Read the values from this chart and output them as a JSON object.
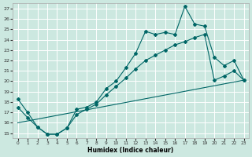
{
  "xlabel": "Humidex (Indice chaleur)",
  "bg_color": "#cce8e0",
  "line_color": "#006666",
  "xlim": [
    -0.5,
    23.5
  ],
  "ylim": [
    14.5,
    27.5
  ],
  "xticks": [
    0,
    1,
    2,
    3,
    4,
    5,
    6,
    7,
    8,
    9,
    10,
    11,
    12,
    13,
    14,
    15,
    16,
    17,
    18,
    19,
    20,
    21,
    22,
    23
  ],
  "yticks": [
    15,
    16,
    17,
    18,
    19,
    20,
    21,
    22,
    23,
    24,
    25,
    26,
    27
  ],
  "line1_x": [
    0,
    1,
    2,
    3,
    4,
    5,
    6,
    7,
    8,
    9,
    10,
    11,
    12,
    13,
    14,
    15,
    16,
    17,
    18,
    19,
    20,
    21,
    22,
    23
  ],
  "line1_y": [
    18.3,
    17.0,
    15.6,
    14.9,
    14.9,
    15.5,
    17.3,
    17.5,
    18.0,
    19.3,
    20.0,
    21.3,
    22.7,
    24.8,
    24.5,
    24.7,
    24.5,
    27.2,
    25.5,
    25.3,
    22.3,
    21.5,
    22.0,
    20.1
  ],
  "line2_x": [
    0,
    1,
    2,
    3,
    4,
    5,
    6,
    7,
    8,
    9,
    10,
    11,
    12,
    13,
    14,
    15,
    16,
    17,
    18,
    19,
    20,
    21,
    22,
    23
  ],
  "line2_y": [
    17.5,
    16.5,
    15.6,
    14.9,
    14.9,
    15.5,
    16.8,
    17.3,
    17.8,
    18.7,
    19.5,
    20.3,
    21.2,
    22.0,
    22.5,
    23.0,
    23.5,
    23.8,
    24.2,
    24.5,
    20.1,
    20.5,
    21.0,
    20.1
  ],
  "line3_x": [
    0,
    23
  ],
  "line3_y": [
    16.0,
    20.1
  ]
}
